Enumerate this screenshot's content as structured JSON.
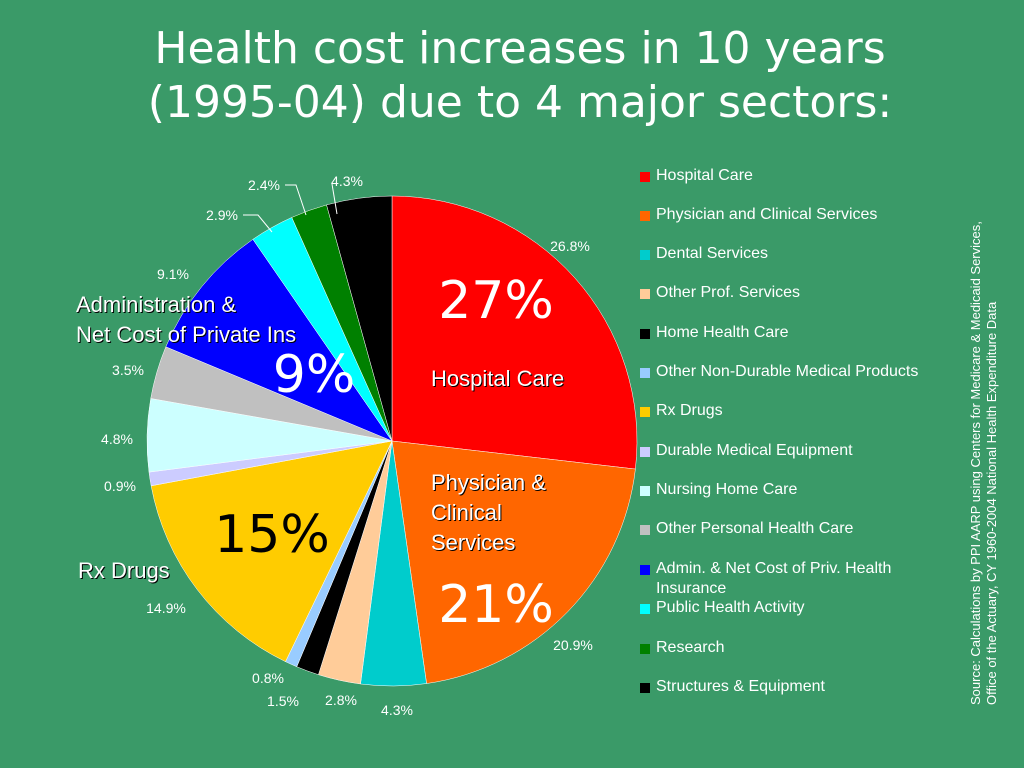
{
  "title_line1": "Health cost increases in 10 years",
  "title_line2": "(1995-04) due to 4 major sectors:",
  "chart_data": {
    "type": "pie",
    "categories": [
      "Hospital Care",
      "Physician and Clinical Services",
      "Dental Services",
      "Other Prof. Services",
      "Home Health Care",
      "Other Non-Durable Medical Products",
      "Rx Drugs",
      "Durable Medical Equipment",
      "Nursing Home Care",
      "Other Personal Health Care",
      "Admin. & Net Cost of Priv. Health Insurance",
      "Public Health Activity",
      "Research",
      "Structures & Equipment"
    ],
    "values": [
      26.8,
      20.9,
      4.3,
      2.8,
      1.5,
      0.8,
      14.9,
      0.9,
      4.8,
      3.5,
      9.1,
      2.9,
      2.4,
      4.3
    ],
    "value_labels": [
      "26.8%",
      "20.9%",
      "4.3%",
      "2.8%",
      "1.5%",
      "0.8%",
      "14.9%",
      "0.9%",
      "4.8%",
      "3.5%",
      "9.1%",
      "2.9%",
      "2.4%",
      "4.3%"
    ],
    "colors": [
      "#ff0000",
      "#ff6600",
      "#00cccc",
      "#ffcc99",
      "#000000",
      "#99ccff",
      "#ffcc00",
      "#ccccff",
      "#ccffff",
      "#c0c0c0",
      "#0000ff",
      "#00ffff",
      "#008000",
      "#000000"
    ],
    "title": "",
    "legend_placement": "right"
  },
  "callouts": {
    "hospital_pct": "27%",
    "hospital_label": "Hospital Care",
    "physician_pct": "21%",
    "physician_label_1": "Physician &",
    "physician_label_2": "Clinical",
    "physician_label_3": "Services",
    "rx_pct": "15%",
    "rx_label": "Rx Drugs",
    "admin_pct": "9%",
    "admin_label_1": "Administration &",
    "admin_label_2": "Net Cost of Private Ins"
  },
  "legend": [
    {
      "label": "Hospital Care",
      "color": "#ff0000"
    },
    {
      "label": "Physician and Clinical Services",
      "color": "#ff6600"
    },
    {
      "label": "Dental Services",
      "color": "#00cccc"
    },
    {
      "label": "Other Prof. Services",
      "color": "#ffcc99"
    },
    {
      "label": "Home Health Care",
      "color": "#000000"
    },
    {
      "label": "Other Non-Durable Medical Products",
      "color": "#99ccff"
    },
    {
      "label": "Rx Drugs",
      "color": "#ffcc00"
    },
    {
      "label": "Durable Medical Equipment",
      "color": "#ccccff"
    },
    {
      "label": "Nursing Home Care",
      "color": "#ccffff"
    },
    {
      "label": "Other Personal Health Care",
      "color": "#c0c0c0"
    },
    {
      "label": "Admin. & Net Cost of Priv. Health Insurance",
      "color": "#0000ff"
    },
    {
      "label": "Public Health Activity",
      "color": "#00ffff"
    },
    {
      "label": "Research",
      "color": "#008000"
    },
    {
      "label": "Structures & Equipment",
      "color": "#000000"
    }
  ],
  "source_line1": "Source: Calculations by PPI AARP using  Centers for Medicare & Medicaid Services,",
  "source_line2": "Office of the Actuary, CY 1960-2004 National Health Expenditure Data"
}
